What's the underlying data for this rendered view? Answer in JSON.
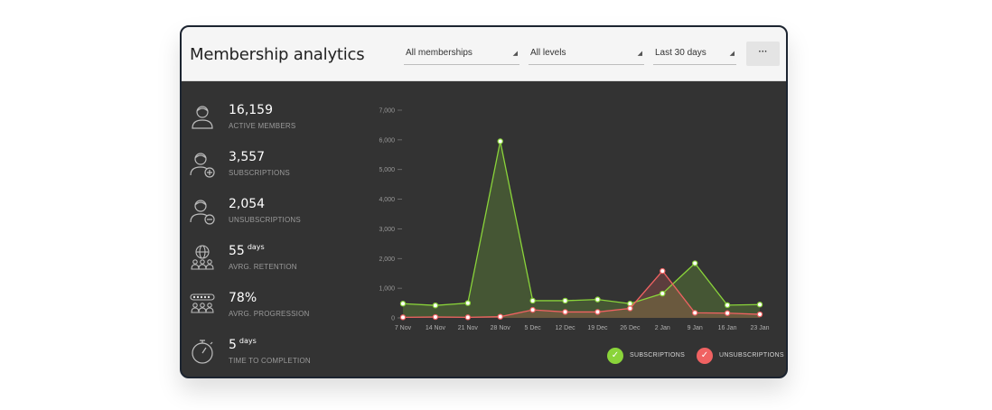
{
  "header": {
    "title": "Membership analytics",
    "filters": {
      "membership": "All memberships",
      "level": "All levels",
      "period": "Last 30 days"
    },
    "more_label": "···"
  },
  "stats": [
    {
      "icon": "person-icon",
      "value": "16,159",
      "unit": "",
      "label": "ACTIVE MEMBERS"
    },
    {
      "icon": "person-add-icon",
      "value": "3,557",
      "unit": "",
      "label": "SUBSCRIPTIONS"
    },
    {
      "icon": "person-remove-icon",
      "value": "2,054",
      "unit": "",
      "label": "UNSUBSCRIPTIONS"
    },
    {
      "icon": "globe-group-icon",
      "value": "55",
      "unit": "days",
      "label": "AVRG. RETENTION"
    },
    {
      "icon": "progress-group-icon",
      "value": "78%",
      "unit": "",
      "label": "AVRG. PROGRESSION"
    },
    {
      "icon": "stopwatch-icon",
      "value": "5",
      "unit": "days",
      "label": "TIME TO COMPLETION"
    }
  ],
  "chart_data": {
    "type": "area",
    "categories": [
      "7 Nov",
      "14 Nov",
      "21 Nov",
      "28 Nov",
      "5 Dec",
      "12 Dec",
      "19 Dec",
      "26 Dec",
      "2 Jan",
      "9 Jan",
      "16 Jan",
      "23 Jan"
    ],
    "yticks": [
      "0",
      "1,000",
      "2,000",
      "3,000",
      "4,000",
      "5,000",
      "6,000",
      "7,000"
    ],
    "ylim": [
      0,
      7000
    ],
    "series": [
      {
        "name": "SUBSCRIPTIONS",
        "color": "#8ad43a",
        "values": [
          480,
          420,
          500,
          5950,
          580,
          580,
          620,
          480,
          820,
          1840,
          430,
          450
        ]
      },
      {
        "name": "UNSUBSCRIPTIONS",
        "color": "#f06262",
        "values": [
          20,
          30,
          20,
          40,
          270,
          200,
          200,
          320,
          1580,
          170,
          160,
          120
        ]
      }
    ],
    "legend_position": "bottom-right",
    "check_glyph": "✓"
  }
}
